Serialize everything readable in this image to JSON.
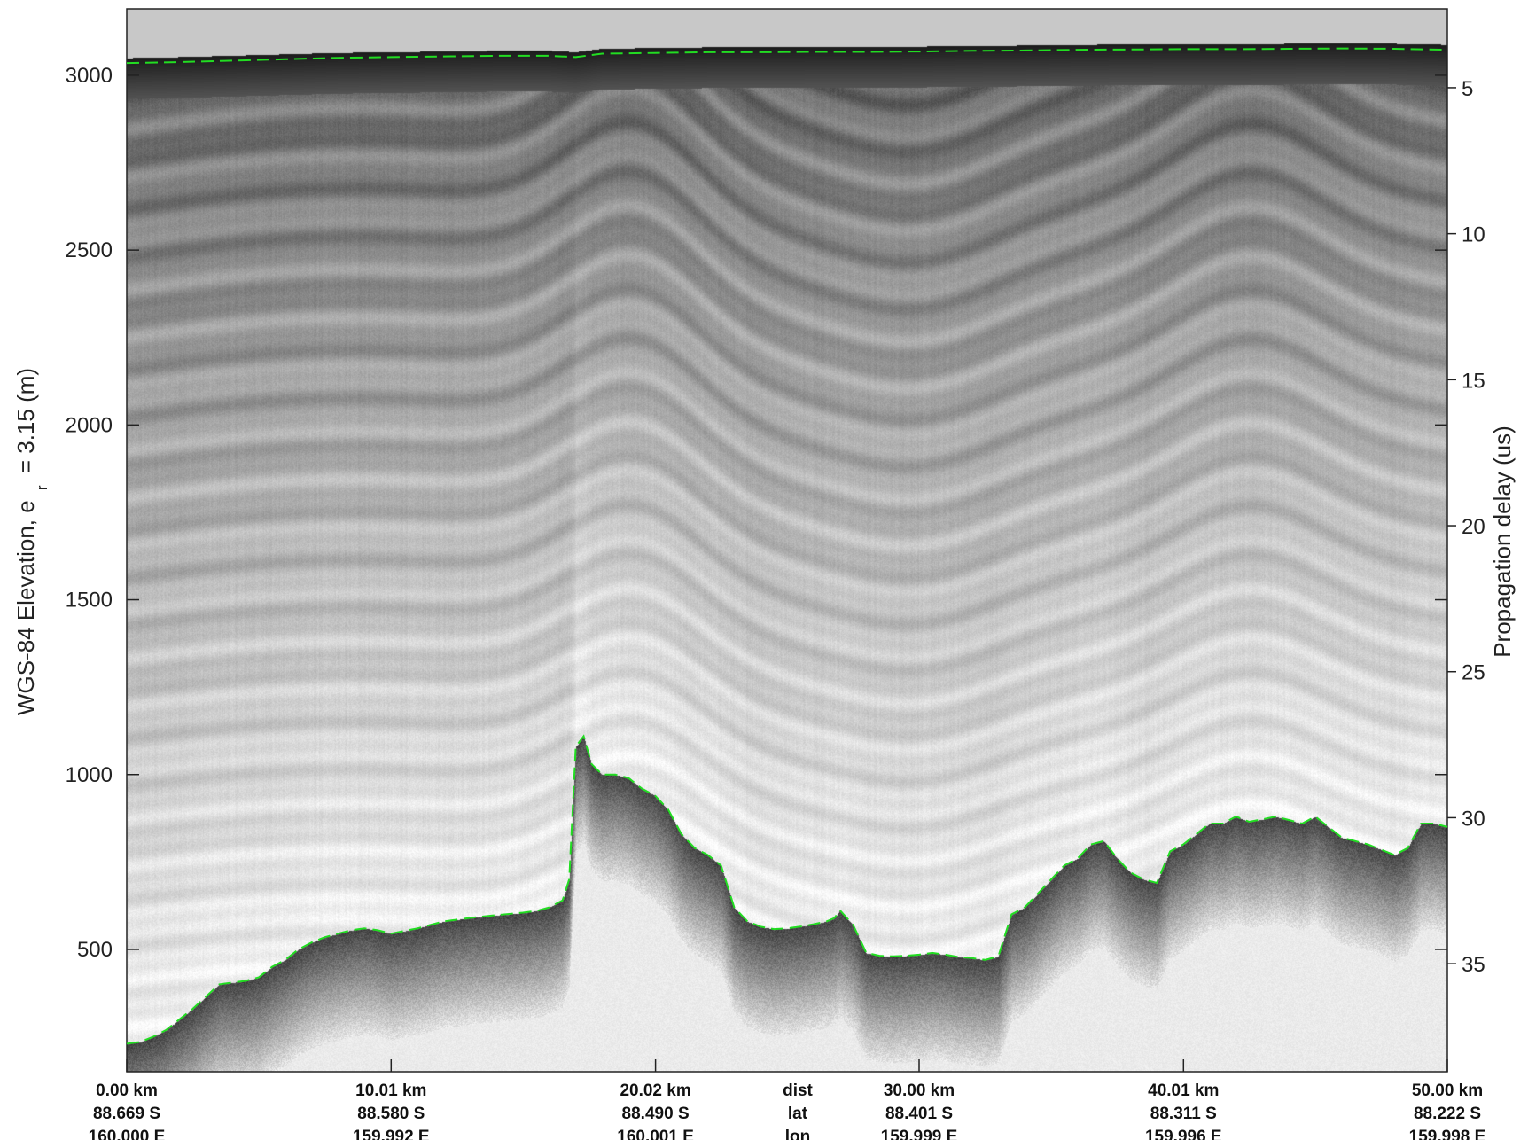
{
  "chart_data": {
    "type": "radargram",
    "title": "",
    "ylabel_left": "WGS-84 Elevation, e",
    "ylabel_left_sub": "r",
    "ylabel_left_suffix": "= 3.15 (m)",
    "ylabel_right": "Propagation delay (us)",
    "y_left": {
      "range": [
        150,
        3190
      ],
      "ticks": [
        500,
        1000,
        1500,
        2000,
        2500,
        3000
      ]
    },
    "y_right": {
      "range": [
        2.3,
        38.7
      ],
      "ticks": [
        5,
        10,
        15,
        20,
        25,
        30,
        35
      ]
    },
    "x": {
      "range": [
        0.0,
        50.0
      ],
      "unit": "km"
    },
    "bottom_rows": {
      "labels": [
        "dist",
        "lat",
        "lon"
      ],
      "label_position_km": 25.0,
      "columns": [
        {
          "km": 0.0,
          "dist": "0.00 km",
          "lat": "88.669 S",
          "lon": "160.000 E"
        },
        {
          "km": 10.01,
          "dist": "10.01 km",
          "lat": "88.580 S",
          "lon": "159.992 E"
        },
        {
          "km": 20.02,
          "dist": "20.02 km",
          "lat": "88.490 S",
          "lon": "160.001 E"
        },
        {
          "km": 30.0,
          "dist": "30.00 km",
          "lat": "88.401 S",
          "lon": "159.999 E"
        },
        {
          "km": 40.01,
          "dist": "40.01 km",
          "lat": "88.311 S",
          "lon": "159.996 E"
        },
        {
          "km": 50.0,
          "dist": "50.00 km",
          "lat": "88.222 S",
          "lon": "159.998 E"
        }
      ]
    },
    "surface_pick": {
      "name": "",
      "color": "#22dd22",
      "x": [
        0,
        2,
        4,
        6,
        8,
        10,
        12,
        14,
        16,
        17,
        18,
        20,
        22,
        24,
        26,
        28,
        30,
        32,
        34,
        36,
        38,
        40,
        42,
        44,
        46,
        48,
        50
      ],
      "y": [
        3035,
        3038,
        3042,
        3046,
        3050,
        3052,
        3054,
        3056,
        3056,
        3052,
        3062,
        3064,
        3066,
        3066,
        3067,
        3067,
        3068,
        3070,
        3071,
        3073,
        3074,
        3075,
        3075,
        3076,
        3077,
        3076,
        3073
      ]
    },
    "bed_pick": {
      "name": "",
      "color": "#22dd22",
      "x": [
        0,
        0.5,
        1,
        1.5,
        2,
        2.5,
        3,
        3.5,
        4,
        4.5,
        5,
        5.5,
        6,
        6.5,
        7,
        7.5,
        8,
        8.5,
        9,
        9.5,
        10,
        11,
        12,
        13,
        14,
        15,
        15.5,
        16,
        16.5,
        16.75,
        17.0,
        17.3,
        17.6,
        18,
        18.5,
        19,
        19.5,
        20,
        20.5,
        21,
        21.5,
        22,
        22.5,
        23,
        23.5,
        24,
        24.5,
        25,
        25.5,
        26,
        26.5,
        26.8,
        27,
        27.5,
        28,
        28.5,
        29,
        29.5,
        30,
        30.5,
        31,
        31.5,
        32,
        32.5,
        33,
        33.5,
        34,
        34.5,
        35,
        35.5,
        36,
        36.5,
        37,
        37.5,
        38,
        38.5,
        39,
        39.5,
        40,
        40.5,
        41,
        41.5,
        42,
        42.5,
        43,
        43.5,
        44,
        44.5,
        45,
        45.5,
        46,
        46.5,
        47,
        47.5,
        48,
        48.5,
        49,
        49.5,
        50
      ],
      "y": [
        230,
        235,
        250,
        270,
        300,
        330,
        365,
        400,
        405,
        410,
        420,
        450,
        470,
        500,
        520,
        535,
        545,
        555,
        560,
        555,
        545,
        560,
        580,
        590,
        598,
        605,
        610,
        620,
        640,
        700,
        1080,
        1110,
        1030,
        1000,
        1000,
        990,
        960,
        940,
        900,
        830,
        790,
        770,
        740,
        620,
        580,
        565,
        558,
        560,
        565,
        572,
        580,
        590,
        612,
        570,
        490,
        482,
        480,
        482,
        485,
        490,
        485,
        478,
        475,
        470,
        480,
        600,
        620,
        660,
        700,
        740,
        760,
        800,
        810,
        760,
        720,
        700,
        690,
        780,
        800,
        830,
        860,
        860,
        880,
        865,
        872,
        880,
        870,
        860,
        880,
        850,
        820,
        810,
        800,
        785,
        770,
        790,
        860,
        860,
        850
      ]
    }
  }
}
